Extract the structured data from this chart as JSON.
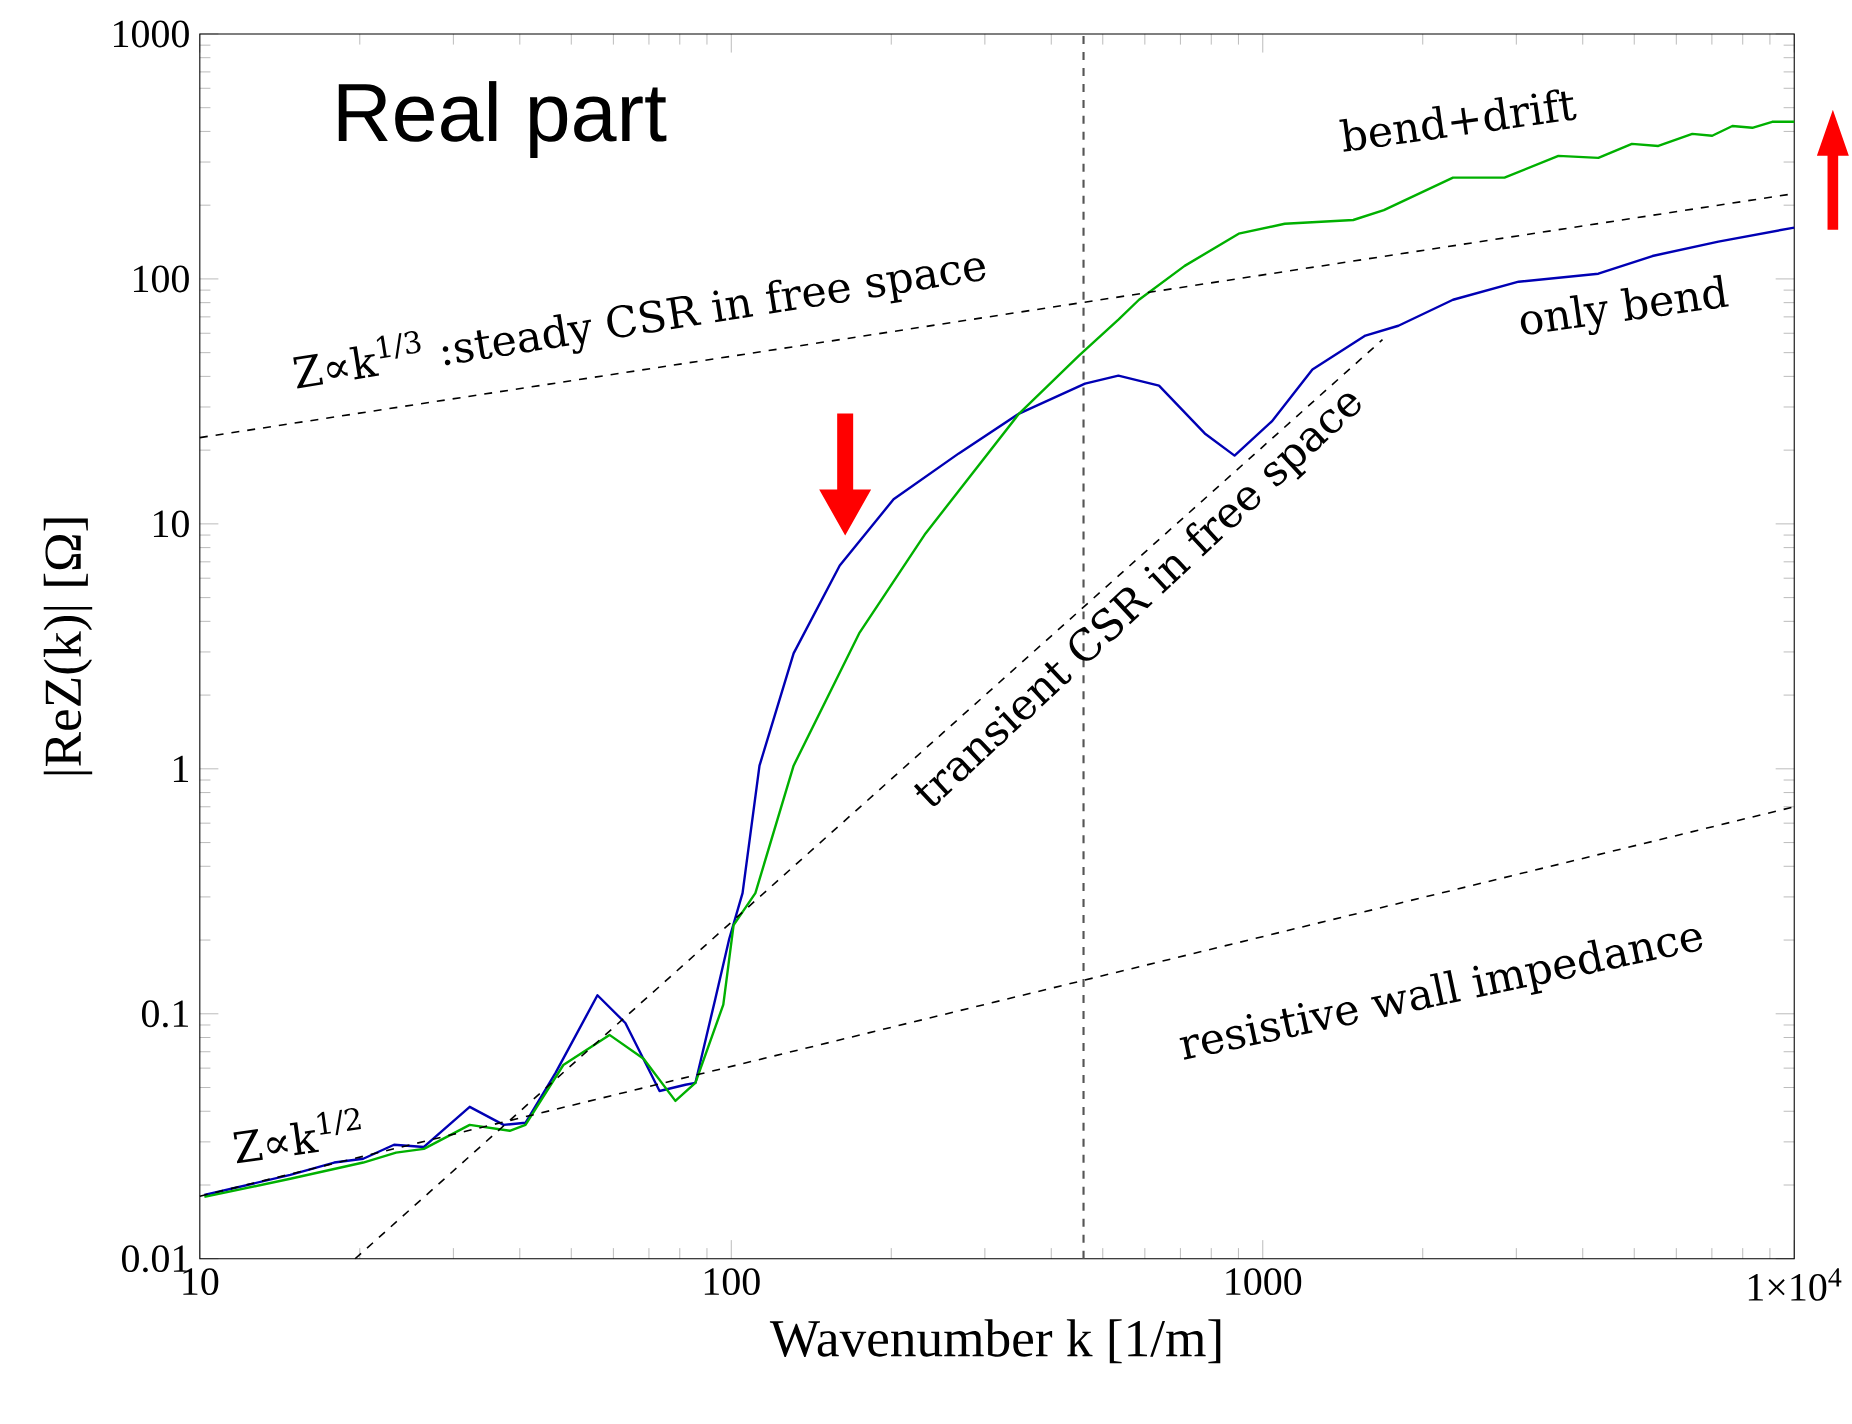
{
  "chart_data": {
    "type": "line",
    "title": "Real part",
    "xlabel": "Wavenumber  k [1/m]",
    "ylabel": "|ReZ(k)| [Ω]",
    "log": "xy",
    "xlim": [
      10,
      10000
    ],
    "ylim": [
      0.01,
      1000
    ],
    "xticks": [
      10,
      100,
      1000,
      {
        "value": 10000,
        "label": "1×10$^{4}$"
      }
    ],
    "yticks": [
      0.01,
      0.1,
      1,
      10,
      100,
      1000
    ],
    "annotations": [
      "Z∝k$^{1/2}$"
    ],
    "ref_lines": [
      {
        "axis": "x",
        "value": 460,
        "color": "#555555",
        "line_style": "dashed"
      }
    ],
    "series": [
      {
        "name": "only bend",
        "color": "#0000b4",
        "line_style": "solid",
        "x": [
          10.2,
          14.8,
          17.9,
          20.3,
          23.2,
          26.4,
          32.2,
          37.3,
          41.0,
          46.7,
          56.0,
          63.2,
          73.3,
          82.0,
          85.6,
          93.3,
          99.1,
          105,
          113,
          131,
          160,
          202,
          268,
          348,
          463,
          535,
          638,
          778,
          885,
          1040,
          1240,
          1560,
          1800,
          2280,
          3030,
          4280,
          5410,
          7200,
          10000
        ],
        "values": [
          0.0182,
          0.022,
          0.0247,
          0.0256,
          0.0292,
          0.0286,
          0.0417,
          0.0352,
          0.0359,
          0.0574,
          0.119,
          0.0917,
          0.0484,
          0.0513,
          0.0522,
          0.115,
          0.202,
          0.311,
          1.03,
          2.96,
          6.76,
          12.6,
          19.4,
          28.2,
          37.4,
          40.3,
          36.7,
          23.4,
          19.0,
          26.2,
          42.7,
          58.7,
          64.4,
          82.2,
          97.4,
          105,
          124,
          142,
          162
        ]
      },
      {
        "name": "bend+drift",
        "color": "#00b000",
        "line_style": "solid",
        "x": [
          10.2,
          14.8,
          20.3,
          23.4,
          26.4,
          32.2,
          38.3,
          41.0,
          48.3,
          59.0,
          68.4,
          78.5,
          85.6,
          96.6,
          101,
          111,
          131,
          174,
          232,
          348,
          451,
          535,
          585,
          713,
          901,
          1100,
          1480,
          1690,
          2280,
          2850,
          3600,
          4280,
          4950,
          5550,
          6430,
          7010,
          7650,
          8340,
          9090,
          10000
        ],
        "values": [
          0.0179,
          0.0212,
          0.0247,
          0.0271,
          0.0281,
          0.0352,
          0.0333,
          0.0352,
          0.0618,
          0.082,
          0.0655,
          0.0441,
          0.0522,
          0.109,
          0.23,
          0.311,
          1.03,
          3.57,
          9.14,
          28.2,
          48.6,
          68.2,
          82.2,
          113,
          153,
          168,
          174,
          191,
          259,
          259,
          318,
          312,
          356,
          349,
          391,
          384,
          421,
          414,
          438,
          438
        ]
      },
      {
        "name": "Z∝k$^{1/3}$ :steady CSR in free space",
        "color": "#000000",
        "line_style": "dashed",
        "x": [
          10,
          10000
        ],
        "values": [
          22.5,
          223
        ]
      },
      {
        "name": "transient CSR in free space",
        "color": "#000000",
        "line_style": "dashed",
        "x": [
          19.6,
          1680
        ],
        "values": [
          0.01,
          56.5
        ]
      },
      {
        "name": "resistive wall impedance",
        "color": "#000000",
        "line_style": "dashed",
        "x": [
          10,
          10000
        ],
        "values": [
          0.018,
          0.7
        ]
      }
    ]
  }
}
